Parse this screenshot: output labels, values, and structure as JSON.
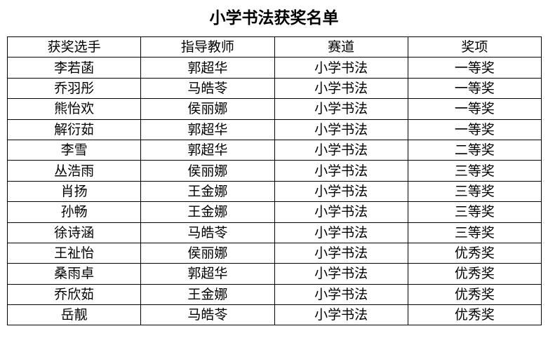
{
  "title": "小学书法获奖名单",
  "headers": [
    "获奖选手",
    "指导教师",
    "赛道",
    "奖项"
  ],
  "rows": [
    [
      "李若菡",
      "郭超华",
      "小学书法",
      "一等奖"
    ],
    [
      "乔羽彤",
      "马皓苓",
      "小学书法",
      "一等奖"
    ],
    [
      "熊怡欢",
      "侯丽娜",
      "小学书法",
      "一等奖"
    ],
    [
      "解衍茹",
      "郭超华",
      "小学书法",
      "一等奖"
    ],
    [
      "李雪",
      "郭超华",
      "小学书法",
      "二等奖"
    ],
    [
      "丛浩雨",
      "侯丽娜",
      "小学书法",
      "三等奖"
    ],
    [
      "肖扬",
      "王金娜",
      "小学书法",
      "三等奖"
    ],
    [
      "孙畅",
      "王金娜",
      "小学书法",
      "三等奖"
    ],
    [
      "徐诗涵",
      "马皓苓",
      "小学书法",
      "三等奖"
    ],
    [
      "王祉怡",
      "侯丽娜",
      "小学书法",
      "优秀奖"
    ],
    [
      "桑雨卓",
      "郭超华",
      "小学书法",
      "优秀奖"
    ],
    [
      "乔欣茹",
      "王金娜",
      "小学书法",
      "优秀奖"
    ],
    [
      "岳靓",
      "马皓苓",
      "小学书法",
      "优秀奖"
    ]
  ]
}
